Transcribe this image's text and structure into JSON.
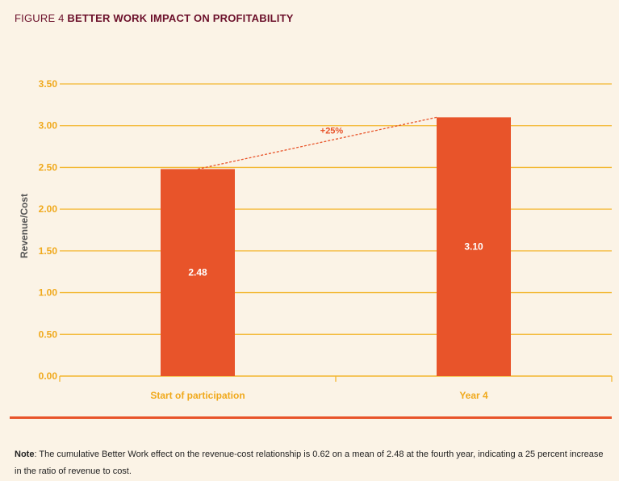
{
  "figure": {
    "prefix": "FIGURE 4",
    "title": "BETTER WORK IMPACT ON PROFITABILITY"
  },
  "chart_data": {
    "type": "bar",
    "categories": [
      "Start of participation",
      "Year 4"
    ],
    "values": [
      2.48,
      3.1
    ],
    "value_labels": [
      "2.48",
      "3.10"
    ],
    "ylabel": "Revenue/Cost",
    "xlabel": "",
    "ylim": [
      0,
      3.5
    ],
    "yticks": [
      "0.00",
      "0.50",
      "1.00",
      "1.50",
      "2.00",
      "2.50",
      "3.00",
      "3.50"
    ],
    "grid": true,
    "annotation": "+25%",
    "colors": {
      "bar": "#e8542a",
      "grid": "#f3b62f",
      "tick_label": "#f0a91c",
      "category_label": "#f0a91c",
      "axis_title": "#555555",
      "annotation": "#e8542a"
    }
  },
  "note": {
    "label": "Note",
    "text": ": The cumulative Better Work effect on the revenue-cost relationship is 0.62 on a mean of 2.48 at the fourth year, indicating a 25 percent increase in the ratio of revenue to cost."
  }
}
